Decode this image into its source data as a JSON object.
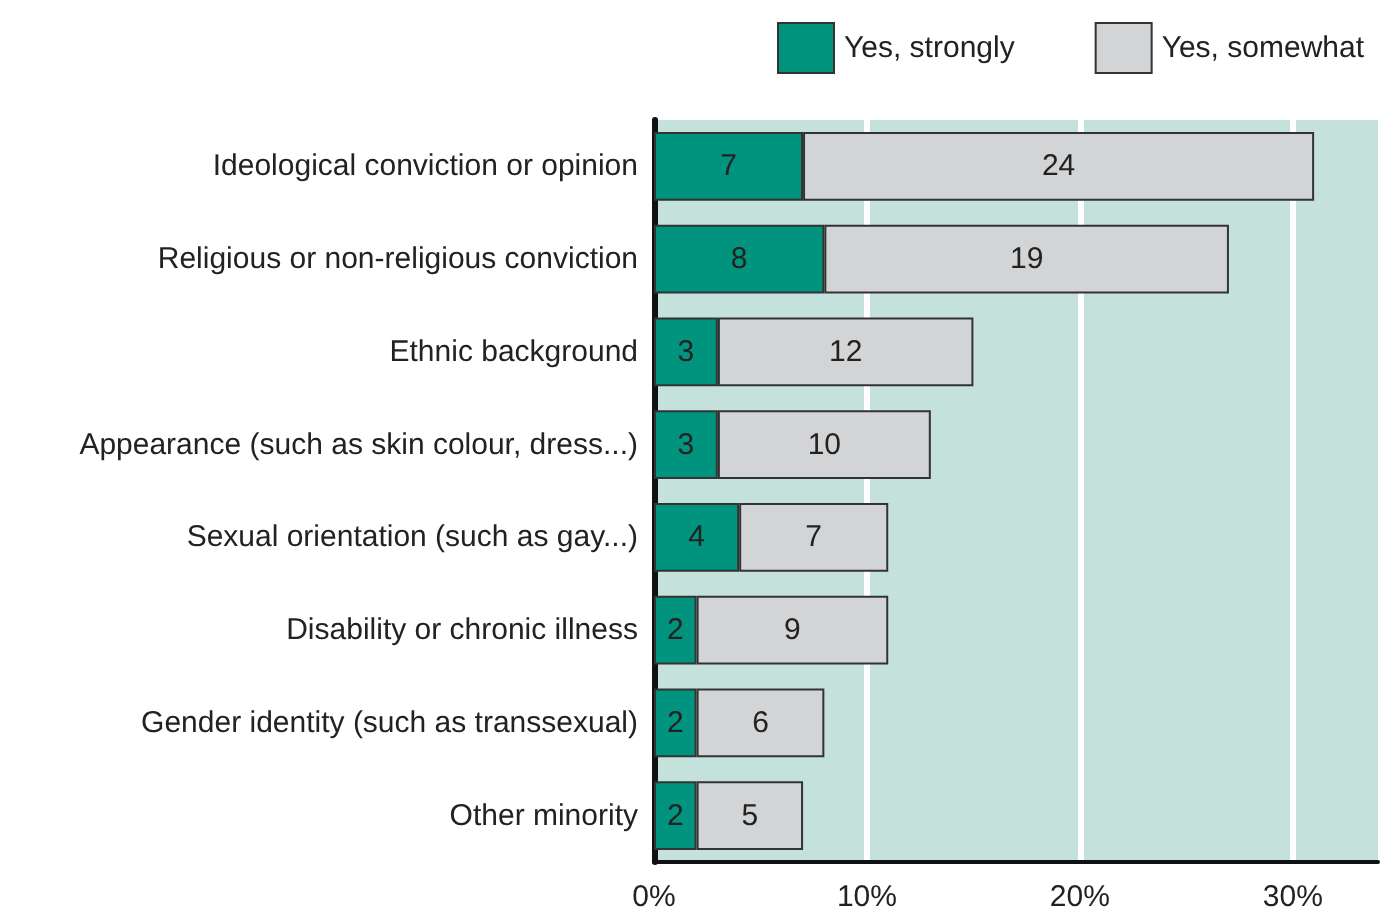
{
  "chart_data": {
    "type": "bar",
    "orientation": "horizontal",
    "stacked": true,
    "categories": [
      "Ideological conviction or opinion",
      "Religious or non-religious conviction",
      "Ethnic background",
      "Appearance (such as skin colour, dress...)",
      "Sexual orientation (such as gay...)",
      "Disability or chronic illness",
      "Gender identity (such as transsexual)",
      "Other minority"
    ],
    "series": [
      {
        "name": "Yes, strongly",
        "color": "#00937d",
        "values": [
          7,
          8,
          3,
          3,
          4,
          2,
          2,
          2
        ]
      },
      {
        "name": "Yes, somewhat",
        "color": "#d3d4d6",
        "values": [
          24,
          19,
          12,
          10,
          7,
          9,
          6,
          5
        ]
      }
    ],
    "xlim": [
      0,
      34
    ],
    "xticks": [
      {
        "value": 0,
        "label": "0%"
      },
      {
        "value": 10,
        "label": "10%"
      },
      {
        "value": 20,
        "label": "20%"
      },
      {
        "value": 30,
        "label": "30%"
      }
    ],
    "grid": "x",
    "legend": "top right",
    "data_labels": true
  }
}
